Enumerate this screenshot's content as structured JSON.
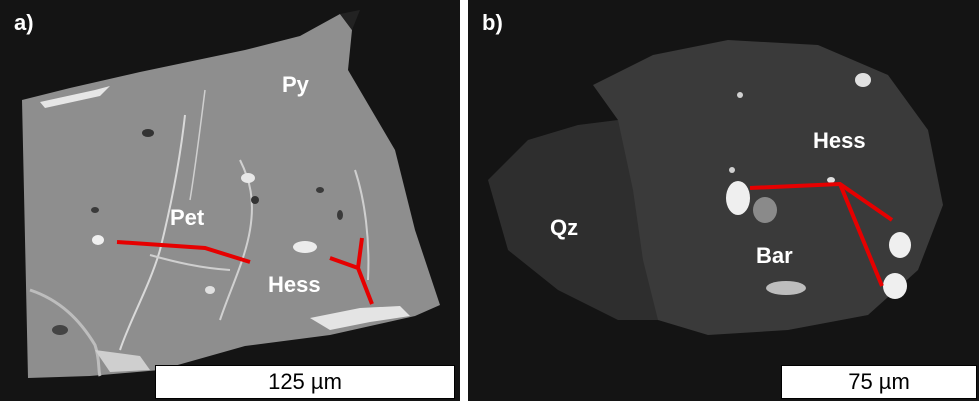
{
  "panel_a": {
    "letter": "a)",
    "labels": {
      "py": "Py",
      "pet": "Pet",
      "hess": "Hess"
    },
    "scale_bar": "125 µm"
  },
  "panel_b": {
    "letter": "b)",
    "labels": {
      "qz": "Qz",
      "hess": "Hess",
      "bar": "Bar"
    },
    "scale_bar": "75 µm"
  },
  "colors": {
    "background": "#141414",
    "pyrite_grain": "#8e8e8e",
    "hessite_grain": "#3a3a3a",
    "quartz": "#2e2e2e",
    "bright_phase": "#ececec",
    "measurement_line": "#e60000"
  }
}
